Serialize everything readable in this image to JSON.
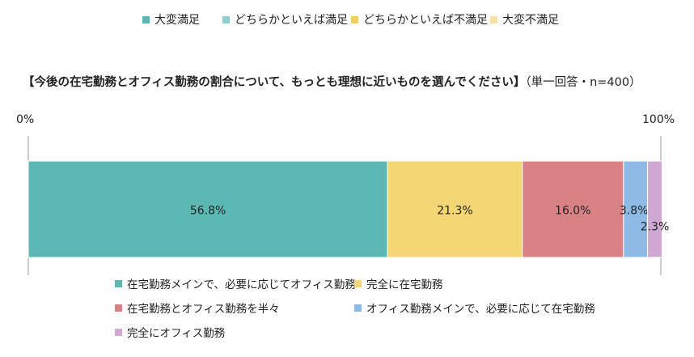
{
  "top_legend": [
    {
      "label": "大変満足",
      "color": "#5bb7b3"
    },
    {
      "label": "どちらかといえば満足",
      "color": "#8fd0cc"
    },
    {
      "label": "どちらかといえば不満足",
      "color": "#f0cf5c"
    },
    {
      "label": "大変不満足",
      "color": "#f6e3a3"
    }
  ],
  "chart_data": {
    "type": "bar",
    "orientation": "horizontal-stacked-100",
    "title": "【今後の在宅勤務とオフィス勤務の割合について、もっとも理想に近いものを選んでください】",
    "title_suffix": "（単一回答・n=400）",
    "axis_min_label": "0%",
    "axis_max_label": "100%",
    "xlim": [
      0,
      100
    ],
    "series": [
      {
        "name": "在宅勤務メインで、必要に応じてオフィス勤務",
        "value": 56.8,
        "label": "56.8%",
        "color": "#5cb8b3"
      },
      {
        "name": "完全に在宅勤務",
        "value": 21.3,
        "label": "21.3%",
        "color": "#f4d675"
      },
      {
        "name": "在宅勤務とオフィス勤務を半々",
        "value": 16.0,
        "label": "16.0%",
        "color": "#d88286"
      },
      {
        "name": "オフィス勤務メインで、必要に応じて在宅勤務",
        "value": 3.8,
        "label": "3.8%",
        "color": "#8dbbe6"
      },
      {
        "name": "完全にオフィス勤務",
        "value": 2.3,
        "label": "2.3%",
        "color": "#cfa9d3"
      }
    ]
  }
}
